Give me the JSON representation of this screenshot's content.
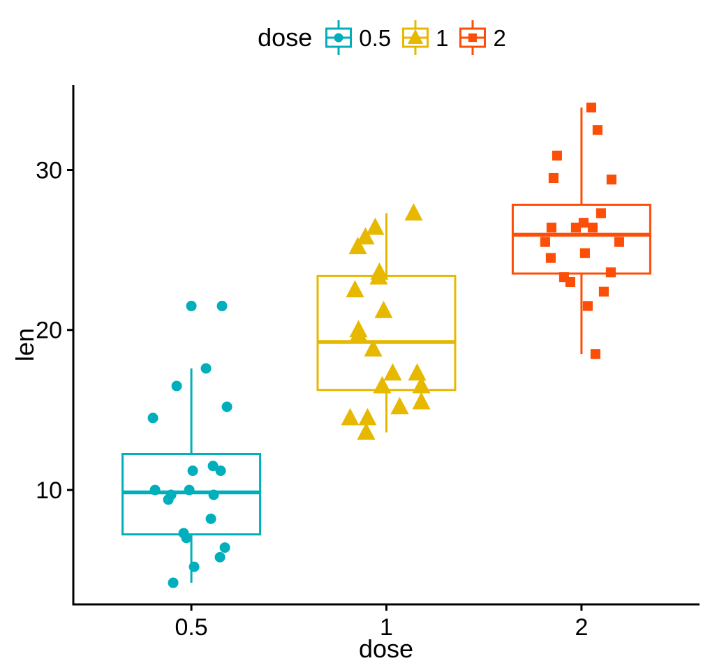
{
  "figure": {
    "background": "#ffffff",
    "text_color": "#000000",
    "axis_color": "#000000"
  },
  "chart_data": {
    "type": "boxplot",
    "subtype": "boxplot with jittered points",
    "title": "",
    "xlabel": "dose",
    "ylabel": "len",
    "grid": false,
    "legend": {
      "title": "dose",
      "position": "top-center",
      "items": [
        {
          "label": "0.5",
          "color": "#00AFBB",
          "shape": "circle"
        },
        {
          "label": "1",
          "color": "#E7B800",
          "shape": "triangle"
        },
        {
          "label": "2",
          "color": "#FC4E07",
          "shape": "square"
        }
      ]
    },
    "axes": {
      "y_ticks": [
        10,
        20,
        30
      ],
      "ylim": [
        2.85,
        35.3
      ],
      "x_categories": [
        "0.5",
        "1",
        "2"
      ]
    },
    "points_format": "[len_value, x_jitter_offset_px]",
    "groups": [
      {
        "category": "0.5",
        "color": "#00AFBB",
        "point_shape": "circle",
        "box": {
          "whisker_low": 4.2,
          "q1": 7.225,
          "median": 9.85,
          "q3": 12.25,
          "whisker_high": 17.6,
          "outliers": [
            21.5
          ]
        },
        "points": [
          [
            21.5,
            44
          ],
          [
            17.6,
            21
          ],
          [
            16.5,
            -21
          ],
          [
            15.2,
            51
          ],
          [
            14.5,
            -55
          ],
          [
            11.5,
            31
          ],
          [
            11.2,
            2
          ],
          [
            11.2,
            42
          ],
          [
            10.0,
            -52
          ],
          [
            10.0,
            -3
          ],
          [
            9.7,
            32
          ],
          [
            9.7,
            -29
          ],
          [
            9.4,
            -33
          ],
          [
            8.2,
            28
          ],
          [
            7.3,
            -11
          ],
          [
            7.0,
            -7
          ],
          [
            6.4,
            48
          ],
          [
            5.8,
            41
          ],
          [
            5.2,
            4
          ],
          [
            4.2,
            -26
          ]
        ]
      },
      {
        "category": "1",
        "color": "#E7B800",
        "point_shape": "triangle",
        "box": {
          "whisker_low": 13.6,
          "q1": 16.25,
          "median": 19.25,
          "q3": 23.375,
          "whisker_high": 27.3,
          "outliers": []
        },
        "points": [
          [
            27.3,
            39
          ],
          [
            26.4,
            -16
          ],
          [
            25.8,
            -30
          ],
          [
            25.2,
            -41
          ],
          [
            23.6,
            -10
          ],
          [
            23.3,
            -11
          ],
          [
            22.5,
            -45
          ],
          [
            21.2,
            -4
          ],
          [
            20.0,
            -40
          ],
          [
            19.7,
            -40
          ],
          [
            18.8,
            -19
          ],
          [
            17.3,
            9
          ],
          [
            17.3,
            44
          ],
          [
            16.5,
            -6
          ],
          [
            16.5,
            50
          ],
          [
            15.5,
            50
          ],
          [
            15.2,
            19
          ],
          [
            14.5,
            -52
          ],
          [
            14.5,
            -27
          ],
          [
            13.6,
            -29
          ]
        ]
      },
      {
        "category": "2",
        "color": "#FC4E07",
        "point_shape": "square",
        "box": {
          "whisker_low": 18.5,
          "q1": 23.525,
          "median": 25.95,
          "q3": 27.825,
          "whisker_high": 33.9,
          "outliers": []
        },
        "points": [
          [
            33.9,
            14
          ],
          [
            32.5,
            23
          ],
          [
            30.9,
            -35
          ],
          [
            29.5,
            -40
          ],
          [
            29.4,
            43
          ],
          [
            27.3,
            28
          ],
          [
            26.7,
            3
          ],
          [
            26.4,
            -8
          ],
          [
            26.4,
            16
          ],
          [
            26.4,
            -43
          ],
          [
            25.5,
            -52
          ],
          [
            25.5,
            54
          ],
          [
            24.8,
            5
          ],
          [
            24.5,
            -44
          ],
          [
            23.6,
            42
          ],
          [
            23.3,
            -25
          ],
          [
            23.0,
            -16
          ],
          [
            22.4,
            32
          ],
          [
            21.5,
            9
          ],
          [
            18.5,
            20
          ]
        ]
      }
    ]
  }
}
